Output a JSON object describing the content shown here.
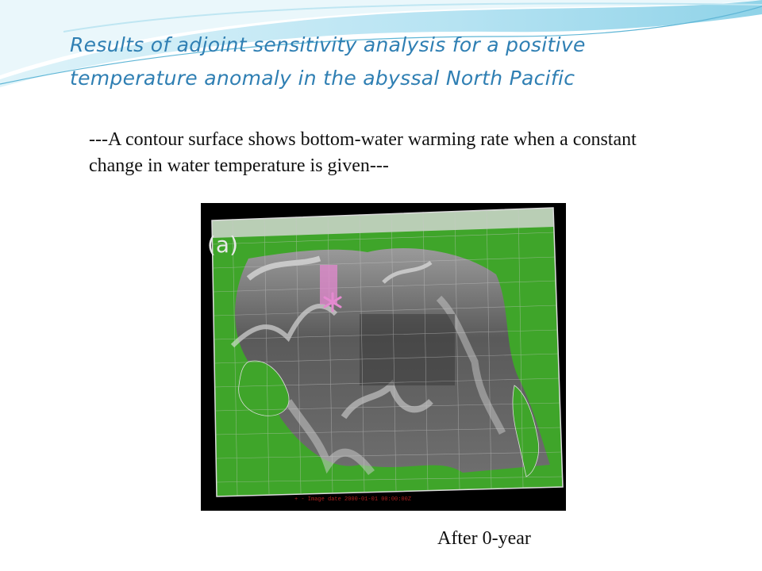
{
  "slide": {
    "title": "Results of adjoint sensitivity analysis for a positive temperature anomaly in the abyssal North Pacific",
    "subtitle": "---A contour surface shows bottom-water warming rate when a constant change in water temperature is given---",
    "caption": "After 0-year"
  },
  "figure": {
    "panel_label": "(a)",
    "footer_text": "+ - Image date 2000-01-01 00:00:00Z",
    "marker_icon": "asterisk-marker",
    "colors": {
      "land": "#3fa52a",
      "background": "#000000",
      "marker": "#e48ad0",
      "surface": "#6a6a6a"
    }
  },
  "theme": {
    "title_color": "#2f7fb3",
    "swoosh_light": "#bfe6f2",
    "swoosh_mid": "#8fd0e6"
  }
}
